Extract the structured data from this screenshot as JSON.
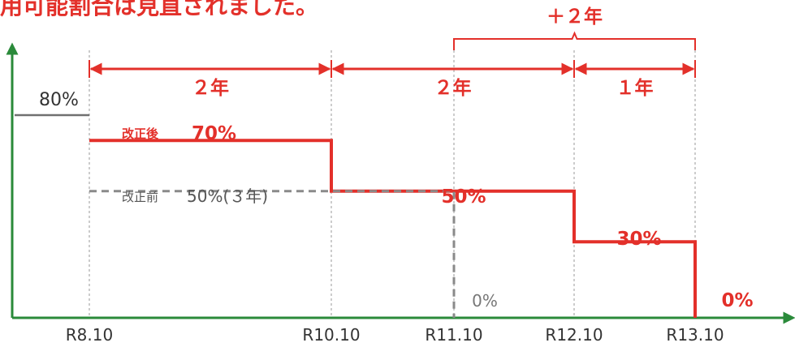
{
  "caption": "用可能割合は見直されました。",
  "colors": {
    "red": "#e3302a",
    "gray": "#707070",
    "dash_gray": "#8a8a8a",
    "axis": "#2a8a3a",
    "label": "#333333"
  },
  "chart_data": {
    "type": "line",
    "x_labels": [
      "R8.10",
      "R10.10",
      "R11.10",
      "R12.10",
      "R13.10"
    ],
    "series": [
      {
        "id": "initial",
        "points": [
          [
            "start",
            80
          ],
          [
            "R8.10",
            80
          ]
        ]
      },
      {
        "id": "after",
        "name": "改正後",
        "points": [
          [
            "R8.10",
            70
          ],
          [
            "R10.10",
            70
          ],
          [
            "R10.10",
            50
          ],
          [
            "R12.10",
            50
          ],
          [
            "R12.10",
            30
          ],
          [
            "R13.10",
            30
          ],
          [
            "R13.10",
            0
          ]
        ]
      },
      {
        "id": "before",
        "name": "改正前",
        "points": [
          [
            "R8.10",
            50
          ],
          [
            "R11.10",
            50
          ],
          [
            "R11.10",
            0
          ]
        ]
      }
    ],
    "labels": {
      "initial": "80%",
      "after_name": "改正後",
      "after_first": "70%",
      "before": "改正前",
      "before_value": "50%(３年)",
      "mid": "50%",
      "third": "30%",
      "before_end": "0%",
      "after_end": "0%"
    },
    "periods": [
      {
        "from": "R8.10",
        "to": "R10.10",
        "label": "２年"
      },
      {
        "from": "R10.10",
        "to": "R12.10",
        "label": "２年"
      },
      {
        "from": "R12.10",
        "to": "R13.10",
        "label": "１年"
      }
    ],
    "extension": {
      "from": "R11.10",
      "to": "R13.10",
      "label": "＋２年"
    },
    "ylim": [
      0,
      100
    ]
  }
}
